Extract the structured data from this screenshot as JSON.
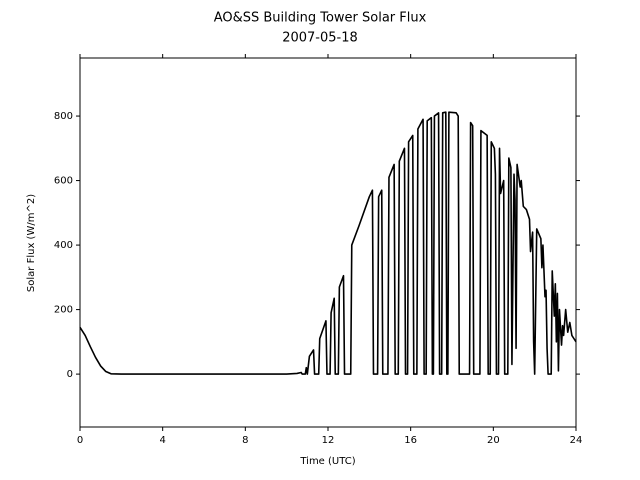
{
  "chart_data": {
    "type": "line",
    "title": "AO&SS Building Tower Solar Flux",
    "subtitle": "2007-05-18",
    "x_label": "Time (UTC)",
    "y_label": "Solar Flux (W/m^2)",
    "xlim": [
      0,
      24
    ],
    "xticks": [
      0,
      4,
      8,
      12,
      16,
      20,
      24
    ],
    "ylim": [
      -164,
      980
    ],
    "yticks": [
      0,
      200,
      400,
      600,
      800
    ],
    "series": [
      {
        "color": "#000000",
        "x": [
          0,
          0.25,
          0.5,
          0.75,
          1,
          1.25,
          1.5,
          2,
          4,
          6,
          8,
          10,
          10.5,
          10.7,
          10.75,
          10.9,
          10.95,
          11.0,
          11.1,
          11.3,
          11.35,
          11.55,
          11.6,
          11.9,
          11.95,
          12.1,
          12.15,
          12.3,
          12.35,
          12.5,
          12.55,
          12.75,
          12.8,
          13.1,
          13.15,
          13.5,
          14.0,
          14.15,
          14.2,
          14.4,
          14.45,
          14.6,
          14.65,
          14.9,
          14.95,
          15.2,
          15.25,
          15.4,
          15.45,
          15.7,
          15.75,
          15.85,
          15.9,
          16.1,
          16.15,
          16.3,
          16.35,
          16.6,
          16.65,
          16.75,
          16.8,
          17.0,
          17.05,
          17.1,
          17.15,
          17.35,
          17.4,
          17.5,
          17.55,
          17.7,
          17.75,
          17.8,
          17.85,
          18.2,
          18.3,
          18.35,
          18.85,
          18.9,
          19.0,
          19.05,
          19.35,
          19.4,
          19.7,
          19.75,
          19.85,
          19.9,
          20.05,
          20.1,
          20.15,
          20.25,
          20.3,
          20.35,
          20.5,
          20.55,
          20.7,
          20.75,
          20.85,
          20.9,
          21.0,
          21.05,
          21.1,
          21.15,
          21.3,
          21.35,
          21.45,
          21.6,
          21.75,
          21.8,
          21.9,
          21.95,
          22.0,
          22.1,
          22.3,
          22.35,
          22.4,
          22.5,
          22.55,
          22.6,
          22.65,
          22.8,
          22.85,
          22.95,
          23.0,
          23.05,
          23.1,
          23.15,
          23.2,
          23.3,
          23.35,
          23.4,
          23.5,
          23.6,
          23.7,
          23.8,
          23.9,
          24
        ],
        "values": [
          145,
          120,
          85,
          52,
          25,
          8,
          1,
          0,
          0,
          0,
          0,
          0,
          2,
          5,
          0,
          0,
          20,
          0,
          55,
          75,
          0,
          0,
          110,
          165,
          0,
          0,
          190,
          235,
          0,
          0,
          270,
          305,
          0,
          0,
          400,
          460,
          550,
          570,
          0,
          0,
          550,
          570,
          0,
          0,
          610,
          650,
          0,
          0,
          660,
          700,
          0,
          0,
          720,
          740,
          0,
          0,
          760,
          790,
          0,
          0,
          785,
          795,
          0,
          0,
          800,
          810,
          0,
          0,
          810,
          812,
          0,
          0,
          812,
          810,
          800,
          0,
          0,
          780,
          770,
          0,
          0,
          755,
          740,
          0,
          0,
          720,
          700,
          620,
          0,
          0,
          700,
          560,
          600,
          0,
          0,
          670,
          640,
          30,
          620,
          540,
          80,
          650,
          580,
          600,
          520,
          510,
          480,
          380,
          440,
          100,
          0,
          450,
          420,
          330,
          400,
          240,
          260,
          80,
          0,
          0,
          320,
          180,
          280,
          100,
          250,
          10,
          200,
          90,
          150,
          120,
          200,
          130,
          160,
          120,
          110,
          100
        ]
      }
    ]
  }
}
